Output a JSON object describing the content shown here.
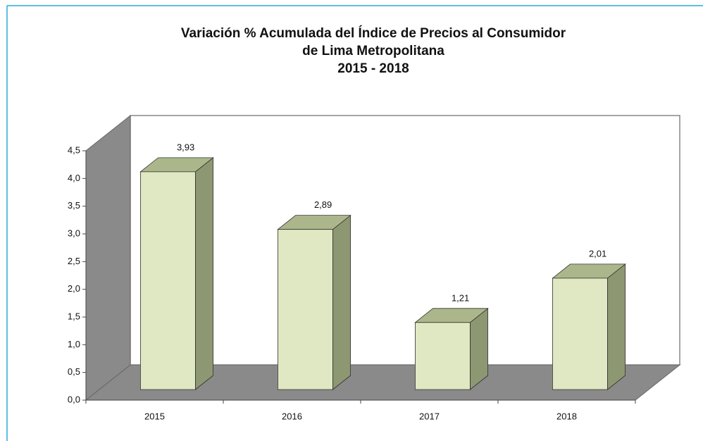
{
  "chart_data": {
    "type": "bar3d",
    "title": [
      "Variación % Acumulada del Índice de Precios al Consumidor",
      "de Lima Metropolitana",
      "2015 - 2018"
    ],
    "categories": [
      "2015",
      "2016",
      "2017",
      "2018"
    ],
    "values": [
      3.93,
      2.89,
      1.21,
      2.01
    ],
    "value_labels": [
      "3,93",
      "2,89",
      "1,21",
      "2,01"
    ],
    "color": "#dfe8c2",
    "ylim": [
      0,
      4.5
    ],
    "yticks": [
      {
        "value": 0,
        "label": "0,0"
      },
      {
        "value": 0.5,
        "label": "0,5"
      },
      {
        "value": 1,
        "label": "1,0"
      },
      {
        "value": 1.5,
        "label": "1,5"
      },
      {
        "value": 2,
        "label": "2,0"
      },
      {
        "value": 2.5,
        "label": "2,5"
      },
      {
        "value": 3,
        "label": "3,0"
      },
      {
        "value": 3.5,
        "label": "3,5"
      },
      {
        "value": 4,
        "label": "4,0"
      },
      {
        "value": 4.5,
        "label": "4,5"
      }
    ],
    "grid": false
  }
}
